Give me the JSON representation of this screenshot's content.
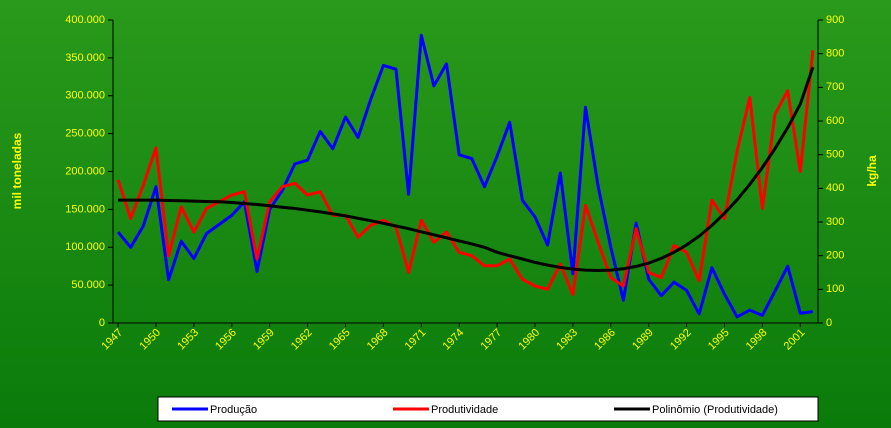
{
  "chart_data": {
    "type": "line",
    "y_label": "mil toneladas",
    "y2_label": "kg/ha",
    "x": [
      1947,
      1948,
      1949,
      1950,
      1951,
      1952,
      1953,
      1954,
      1955,
      1956,
      1957,
      1958,
      1959,
      1960,
      1961,
      1962,
      1963,
      1964,
      1965,
      1966,
      1967,
      1968,
      1969,
      1970,
      1971,
      1972,
      1973,
      1974,
      1975,
      1976,
      1977,
      1978,
      1979,
      1980,
      1981,
      1982,
      1983,
      1984,
      1985,
      1986,
      1987,
      1988,
      1989,
      1990,
      1991,
      1992,
      1993,
      1994,
      1995,
      1996,
      1997,
      1998,
      1999,
      2000,
      2001,
      2002
    ],
    "xlim": [
      1946.6,
      2002.4
    ],
    "xticks": [
      1947,
      1950,
      1953,
      1956,
      1959,
      1962,
      1965,
      1968,
      1971,
      1974,
      1977,
      1980,
      1983,
      1986,
      1989,
      1992,
      1995,
      1998,
      2001
    ],
    "ylim": [
      0,
      400000
    ],
    "yticks": [
      0,
      {
        "value": 50000,
        "label": "50.000"
      },
      {
        "value": 100000,
        "label": "100.000"
      },
      {
        "value": 150000,
        "label": "150.000"
      },
      {
        "value": 200000,
        "label": "200.000"
      },
      {
        "value": 250000,
        "label": "250.000"
      },
      {
        "value": 300000,
        "label": "300.000"
      },
      {
        "value": 350000,
        "label": "350.000"
      },
      {
        "value": 400000,
        "label": "400.000"
      }
    ],
    "y2lim": [
      0,
      900
    ],
    "y2ticks": [
      0,
      100,
      200,
      300,
      400,
      500,
      600,
      700,
      800,
      900
    ],
    "grid": false,
    "legend": "bottom",
    "series": [
      {
        "name": "Produção",
        "color": "#0000ff",
        "axis": "y",
        "values": [
          120000,
          100000,
          128000,
          180000,
          57000,
          108000,
          85000,
          118000,
          130000,
          142000,
          160000,
          68000,
          150000,
          175000,
          210000,
          215000,
          253000,
          230000,
          272000,
          245000,
          295000,
          340000,
          335000,
          170000,
          380000,
          313000,
          342000,
          222000,
          217000,
          180000,
          220000,
          265000,
          162000,
          140000,
          103000,
          198000,
          65000,
          285000,
          180000,
          100000,
          30000,
          132000,
          58000,
          36000,
          54000,
          43000,
          12000,
          73000,
          38000,
          8000,
          17000,
          10000,
          42000,
          75000,
          13000,
          15000
        ]
      },
      {
        "name": "Produtividade",
        "color": "#ff0000",
        "axis": "y2",
        "values": [
          425,
          310,
          410,
          520,
          200,
          345,
          270,
          340,
          360,
          380,
          390,
          190,
          360,
          405,
          415,
          380,
          390,
          320,
          320,
          255,
          290,
          305,
          285,
          150,
          305,
          240,
          270,
          210,
          200,
          170,
          170,
          190,
          130,
          110,
          100,
          175,
          85,
          350,
          240,
          135,
          110,
          280,
          150,
          135,
          230,
          210,
          125,
          365,
          310,
          510,
          670,
          340,
          620,
          690,
          450,
          810
        ]
      },
      {
        "name": "Polinômio (Produtividade)",
        "color": "#000000",
        "axis": "y2",
        "values": [
          365,
          365,
          365,
          365,
          364,
          363,
          362,
          361,
          360,
          358,
          355,
          352,
          348,
          344,
          340,
          335,
          330,
          324,
          318,
          311,
          304,
          296,
          288,
          280,
          271,
          262,
          253,
          244,
          235,
          225,
          210,
          200,
          190,
          180,
          172,
          165,
          160,
          157,
          156,
          157,
          161,
          168,
          178,
          192,
          210,
          232,
          258,
          290,
          326,
          366,
          412,
          462,
          518,
          580,
          650,
          760
        ]
      }
    ]
  }
}
